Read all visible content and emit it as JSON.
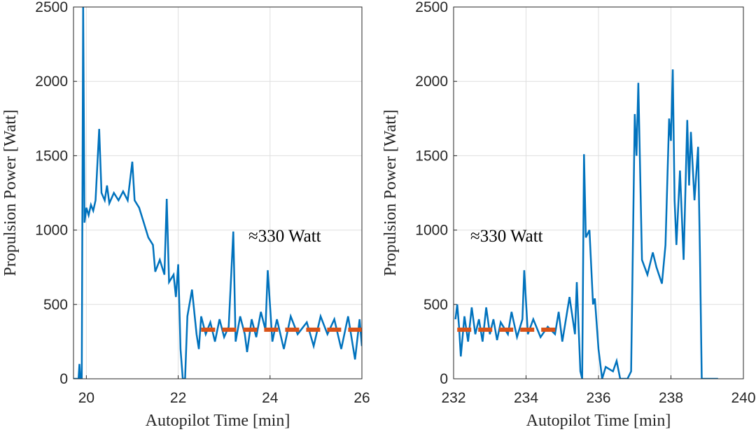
{
  "chart_data": [
    {
      "type": "line",
      "xlabel": "Autopilot Time [min]",
      "ylabel": "Propulsion Power [Watt]",
      "xlim": [
        19.72,
        26
      ],
      "xticks": [
        20,
        22,
        24,
        26
      ],
      "ylim": [
        0,
        2500
      ],
      "yticks": [
        0,
        500,
        1000,
        1500,
        2000,
        2500
      ],
      "grid": true,
      "annotation": "≈330 Watt",
      "series": [
        {
          "color": "#0072bd",
          "dash": false,
          "x": [
            19.72,
            19.83,
            19.85,
            19.87,
            19.9,
            19.93,
            19.96,
            20.0,
            20.05,
            20.1,
            20.15,
            20.2,
            20.28,
            20.33,
            20.4,
            20.45,
            20.5,
            20.6,
            20.7,
            20.8,
            20.9,
            21.0,
            21.05,
            21.15,
            21.25,
            21.35,
            21.45,
            21.5,
            21.6,
            21.7,
            21.75,
            21.8,
            21.9,
            21.95,
            22.0,
            22.05,
            22.1,
            22.15,
            22.2,
            22.3,
            22.4,
            22.45,
            22.5,
            22.6,
            22.7,
            22.8,
            22.9,
            23.0,
            23.1,
            23.2,
            23.25,
            23.35,
            23.45,
            23.5,
            23.6,
            23.7,
            23.8,
            23.9,
            23.95,
            24.05,
            24.15,
            24.3,
            24.45,
            24.6,
            24.8,
            24.95,
            25.1,
            25.25,
            25.4,
            25.55,
            25.7,
            25.85,
            25.95,
            26.0
          ],
          "values": [
            0,
            0,
            100,
            0,
            0,
            2500,
            1050,
            1150,
            1100,
            1170,
            1130,
            1200,
            1680,
            1250,
            1200,
            1300,
            1180,
            1250,
            1200,
            1260,
            1200,
            1460,
            1200,
            1150,
            1050,
            950,
            900,
            720,
            800,
            700,
            1210,
            650,
            700,
            550,
            770,
            200,
            0,
            0,
            420,
            600,
            300,
            200,
            420,
            300,
            380,
            250,
            400,
            280,
            350,
            990,
            250,
            420,
            300,
            180,
            400,
            280,
            450,
            330,
            730,
            250,
            400,
            200,
            420,
            300,
            380,
            220,
            420,
            300,
            400,
            200,
            420,
            130,
            400,
            220
          ]
        },
        {
          "color": "#d95319",
          "dash": true,
          "x": [
            22.5,
            26
          ],
          "values": [
            330,
            330
          ]
        }
      ]
    },
    {
      "type": "line",
      "xlabel": "Autopilot Time [min]",
      "ylabel": "Propulsion Power [Watt]",
      "xlim": [
        232,
        240
      ],
      "xticks": [
        232,
        234,
        236,
        238,
        240
      ],
      "ylim": [
        0,
        2500
      ],
      "yticks": [
        0,
        500,
        1000,
        1500,
        2000,
        2500
      ],
      "grid": true,
      "annotation": "≈330 Watt",
      "series": [
        {
          "color": "#0072bd",
          "dash": false,
          "x": [
            232.05,
            232.1,
            232.15,
            232.2,
            232.3,
            232.4,
            232.5,
            232.6,
            232.7,
            232.8,
            232.9,
            233.0,
            233.1,
            233.2,
            233.3,
            233.5,
            233.6,
            233.75,
            233.9,
            233.95,
            234.05,
            234.2,
            234.4,
            234.6,
            234.8,
            234.9,
            235.0,
            235.2,
            235.35,
            235.4,
            235.5,
            235.55,
            235.6,
            235.65,
            235.75,
            235.85,
            235.9,
            236.0,
            236.1,
            236.2,
            236.4,
            236.5,
            236.6,
            236.8,
            236.9,
            237.0,
            237.05,
            237.1,
            237.2,
            237.35,
            237.5,
            237.6,
            237.75,
            237.85,
            237.95,
            238.0,
            238.05,
            238.1,
            238.15,
            238.25,
            238.35,
            238.45,
            238.5,
            238.55,
            238.65,
            238.75,
            238.8,
            238.85,
            238.9,
            239.3
          ],
          "values": [
            400,
            500,
            350,
            150,
            420,
            250,
            480,
            300,
            400,
            250,
            480,
            300,
            400,
            260,
            380,
            300,
            450,
            280,
            400,
            730,
            300,
            400,
            280,
            350,
            300,
            450,
            250,
            550,
            300,
            650,
            50,
            0,
            1510,
            950,
            1000,
            500,
            540,
            200,
            0,
            80,
            50,
            120,
            0,
            0,
            50,
            1780,
            1500,
            1990,
            800,
            700,
            850,
            750,
            640,
            900,
            1750,
            1600,
            2080,
            1200,
            900,
            1400,
            800,
            1740,
            1300,
            1660,
            1200,
            1560,
            850,
            0,
            0,
            0
          ]
        },
        {
          "color": "#d95319",
          "dash": true,
          "x": [
            232.1,
            235.0
          ],
          "values": [
            330,
            330
          ]
        }
      ]
    }
  ]
}
